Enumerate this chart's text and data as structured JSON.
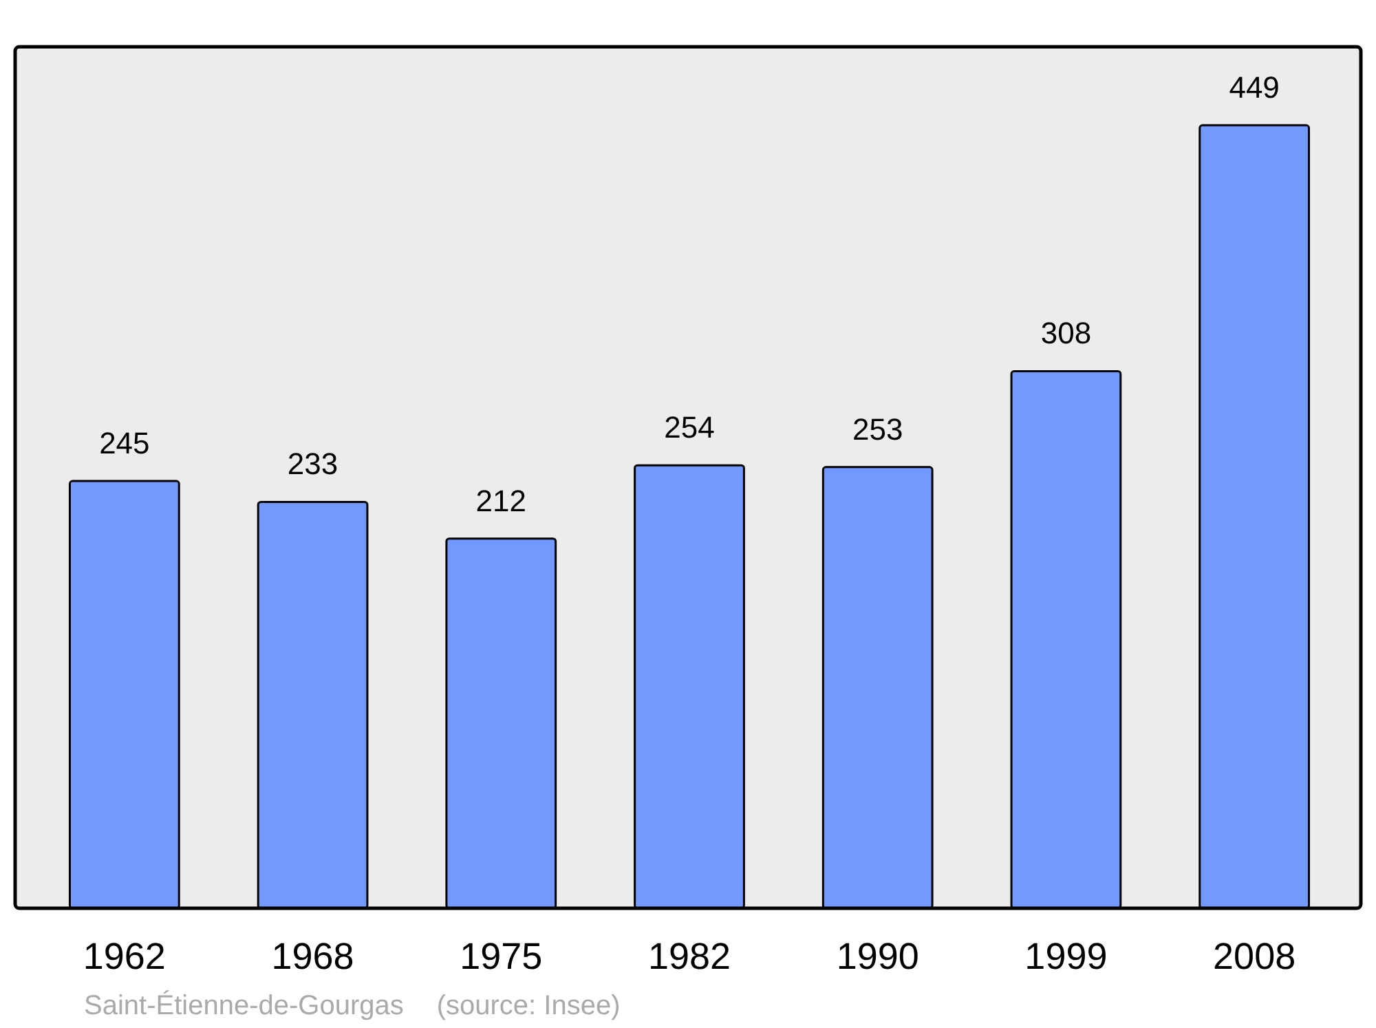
{
  "chart_data": {
    "type": "bar",
    "categories": [
      "1962",
      "1968",
      "1975",
      "1982",
      "1990",
      "1999",
      "2008"
    ],
    "values": [
      245,
      233,
      212,
      254,
      253,
      308,
      449
    ],
    "color": "#7399ff",
    "ylim": [
      0,
      494
    ],
    "data_labels": true,
    "tick_labels": "x",
    "annotations": [
      "Saint-Étienne-de-Gourgas",
      "(source: Insee)"
    ]
  }
}
